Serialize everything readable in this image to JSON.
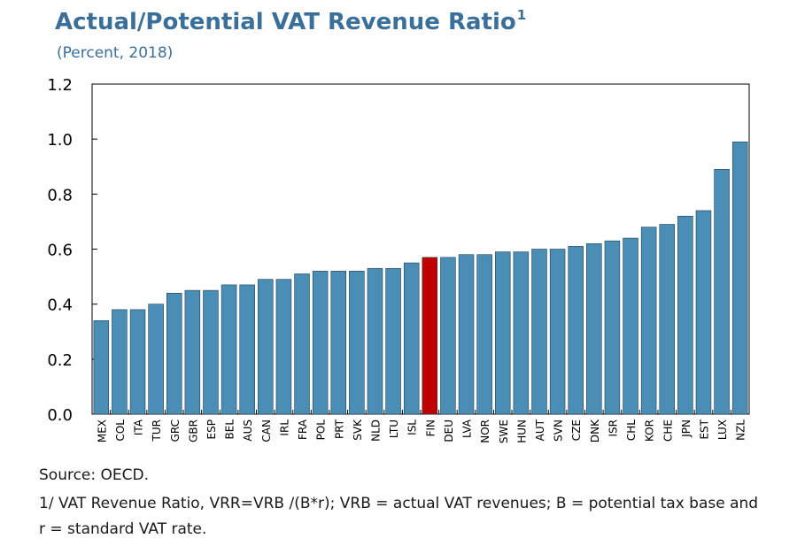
{
  "header": {
    "title": "Actual/Potential VAT Revenue Ratio",
    "title_footnote_mark": "1",
    "subtitle": "(Percent, 2018)"
  },
  "footer": {
    "source": "Source: OECD.",
    "note": "1/ VAT Revenue Ratio, VRR=VRB /(B*r); VRB = actual VAT revenues; B = potential tax base and r = standard VAT rate."
  },
  "colors": {
    "bar": "#4a8db5",
    "highlight": "#c00000",
    "title": "#3a6f9a"
  },
  "chart_data": {
    "type": "bar",
    "title": "Actual/Potential VAT Revenue Ratio",
    "subtitle": "(Percent, 2018)",
    "xlabel": "",
    "ylabel": "",
    "ylim": [
      0,
      1.2
    ],
    "yticks": [
      "0.0",
      "0.2",
      "0.4",
      "0.6",
      "0.8",
      "1.0",
      "1.2"
    ],
    "grid": false,
    "legend": "none",
    "highlighted_category": "FIN",
    "categories": [
      "MEX",
      "COL",
      "ITA",
      "TUR",
      "GRC",
      "GBR",
      "ESP",
      "BEL",
      "AUS",
      "CAN",
      "IRL",
      "FRA",
      "POL",
      "PRT",
      "SVK",
      "NLD",
      "LTU",
      "ISL",
      "FIN",
      "DEU",
      "LVA",
      "NOR",
      "SWE",
      "HUN",
      "AUT",
      "SVN",
      "CZE",
      "DNK",
      "ISR",
      "CHL",
      "KOR",
      "CHE",
      "JPN",
      "EST",
      "LUX",
      "NZL"
    ],
    "values": [
      0.34,
      0.38,
      0.38,
      0.4,
      0.44,
      0.45,
      0.45,
      0.47,
      0.47,
      0.49,
      0.49,
      0.51,
      0.52,
      0.52,
      0.52,
      0.53,
      0.53,
      0.55,
      0.57,
      0.57,
      0.58,
      0.58,
      0.59,
      0.59,
      0.6,
      0.6,
      0.61,
      0.62,
      0.63,
      0.64,
      0.68,
      0.69,
      0.72,
      0.74,
      0.89,
      0.99
    ]
  }
}
